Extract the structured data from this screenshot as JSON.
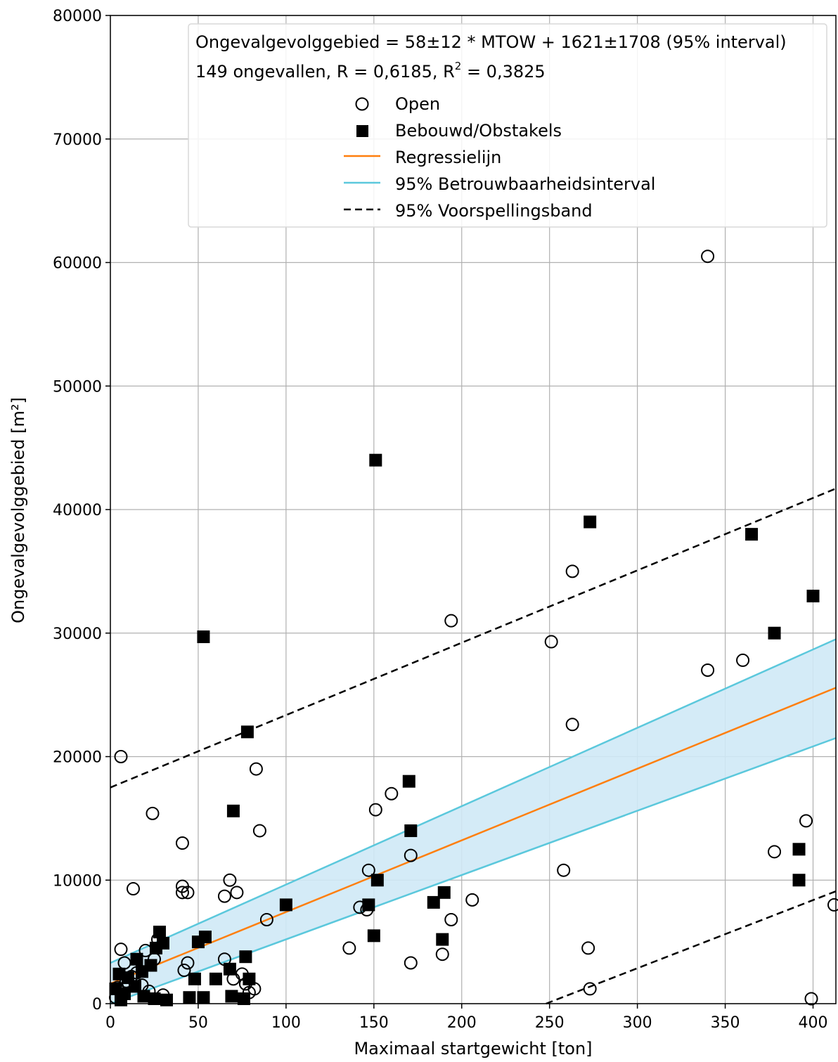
{
  "chart_data": {
    "type": "scatter",
    "xlabel": "Maximaal startgewicht [ton]",
    "ylabel": "Ongevalgevolggebied [m²]",
    "xlim": [
      0,
      413
    ],
    "ylim": [
      0,
      80000
    ],
    "xticks": [
      0,
      50,
      100,
      150,
      200,
      250,
      300,
      350,
      400
    ],
    "yticks": [
      0,
      10000,
      20000,
      30000,
      40000,
      50000,
      60000,
      70000,
      80000
    ],
    "grid": true,
    "legend_position": "top-right",
    "annotation": {
      "line1": "Ongevalgevolggebied = 58±12 * MTOW + 1621±1708 (95% interval)",
      "line2_prefix": "149 ongevallen, R = 0,6185, R",
      "line2_sup": "2",
      "line2_suffix": " = 0,3825"
    },
    "legend": [
      {
        "label": "Open",
        "marker": "open-circle"
      },
      {
        "label": "Bebouwd/Obstakels",
        "marker": "filled-square"
      },
      {
        "label": "Regressielijn",
        "marker": "line",
        "color": "#ff7f0e"
      },
      {
        "label": "95% Betrouwbaarheidsinterval",
        "marker": "line",
        "color": "#5bc8dc"
      },
      {
        "label": "95% Voorspellingsband",
        "marker": "dashed-line",
        "color": "#000000"
      }
    ],
    "colors": {
      "regression": "#ff7f0e",
      "confidence_line": "#5bc8dc",
      "confidence_fill": "#cfe9f6",
      "prediction": "#000000",
      "grid": "#b0b0b0"
    },
    "regression": {
      "slope": 58,
      "intercept": 1621
    },
    "confidence_band": {
      "upper": [
        [
          0,
          3300
        ],
        [
          413,
          29500
        ]
      ],
      "lower": [
        [
          0,
          0
        ],
        [
          413,
          21500
        ]
      ]
    },
    "prediction_band": {
      "upper": [
        [
          0,
          17500
        ],
        [
          413,
          41700
        ]
      ],
      "lower": [
        [
          248,
          0
        ],
        [
          413,
          9100
        ]
      ]
    },
    "series": [
      {
        "name": "Open",
        "marker": "open-circle",
        "points": [
          [
            340,
            60500
          ],
          [
            194,
            31000
          ],
          [
            263,
            35000
          ],
          [
            251,
            29300
          ],
          [
            340,
            27000
          ],
          [
            360,
            27800
          ],
          [
            263,
            22600
          ],
          [
            6,
            20000
          ],
          [
            83,
            19000
          ],
          [
            160,
            17000
          ],
          [
            151,
            15700
          ],
          [
            24,
            15400
          ],
          [
            85,
            14000
          ],
          [
            396,
            14800
          ],
          [
            41,
            13000
          ],
          [
            171,
            12000
          ],
          [
            378,
            12300
          ],
          [
            147,
            10800
          ],
          [
            258,
            10800
          ],
          [
            68,
            10000
          ],
          [
            41,
            9500
          ],
          [
            13,
            9300
          ],
          [
            41,
            9000
          ],
          [
            44,
            9000
          ],
          [
            72,
            9000
          ],
          [
            65,
            8700
          ],
          [
            206,
            8400
          ],
          [
            142,
            7800
          ],
          [
            146,
            7600
          ],
          [
            89,
            6800
          ],
          [
            194,
            6800
          ],
          [
            412,
            8000
          ],
          [
            136,
            4500
          ],
          [
            272,
            4500
          ],
          [
            6,
            4400
          ],
          [
            189,
            4000
          ],
          [
            171,
            3300
          ],
          [
            44,
            3300
          ],
          [
            65,
            3600
          ],
          [
            25,
            3600
          ],
          [
            20,
            4300
          ],
          [
            27,
            5200
          ],
          [
            8,
            3300
          ],
          [
            15,
            2500
          ],
          [
            42,
            2700
          ],
          [
            70,
            2000
          ],
          [
            77,
            1600
          ],
          [
            82,
            1200
          ],
          [
            273,
            1200
          ],
          [
            399,
            400
          ],
          [
            4,
            1300
          ],
          [
            9,
            1800
          ],
          [
            12,
            2200
          ],
          [
            18,
            1500
          ],
          [
            22,
            1000
          ],
          [
            30,
            700
          ],
          [
            3,
            500
          ],
          [
            75,
            2400
          ],
          [
            79,
            900
          ]
        ]
      },
      {
        "name": "Bebouwd/Obstakels",
        "marker": "filled-square",
        "points": [
          [
            151,
            44000
          ],
          [
            273,
            39000
          ],
          [
            365,
            38000
          ],
          [
            400,
            33000
          ],
          [
            378,
            30000
          ],
          [
            53,
            29700
          ],
          [
            78,
            22000
          ],
          [
            70,
            15600
          ],
          [
            170,
            18000
          ],
          [
            171,
            14000
          ],
          [
            392,
            12500
          ],
          [
            392,
            10000
          ],
          [
            152,
            10000
          ],
          [
            100,
            8000
          ],
          [
            147,
            8000
          ],
          [
            190,
            9000
          ],
          [
            184,
            8200
          ],
          [
            150,
            5500
          ],
          [
            189,
            5200
          ],
          [
            28,
            5800
          ],
          [
            30,
            4900
          ],
          [
            54,
            5400
          ],
          [
            50,
            5000
          ],
          [
            26,
            4500
          ],
          [
            15,
            3600
          ],
          [
            23,
            3100
          ],
          [
            5,
            2400
          ],
          [
            10,
            2100
          ],
          [
            48,
            2000
          ],
          [
            60,
            2000
          ],
          [
            77,
            3800
          ],
          [
            79,
            2000
          ],
          [
            68,
            2800
          ],
          [
            3,
            1200
          ],
          [
            8,
            800
          ],
          [
            14,
            1400
          ],
          [
            19,
            600
          ],
          [
            25,
            400
          ],
          [
            32,
            300
          ],
          [
            45,
            500
          ],
          [
            53,
            500
          ],
          [
            69,
            600
          ],
          [
            76,
            400
          ],
          [
            18,
            2600
          ],
          [
            6,
            300
          ]
        ]
      }
    ]
  }
}
